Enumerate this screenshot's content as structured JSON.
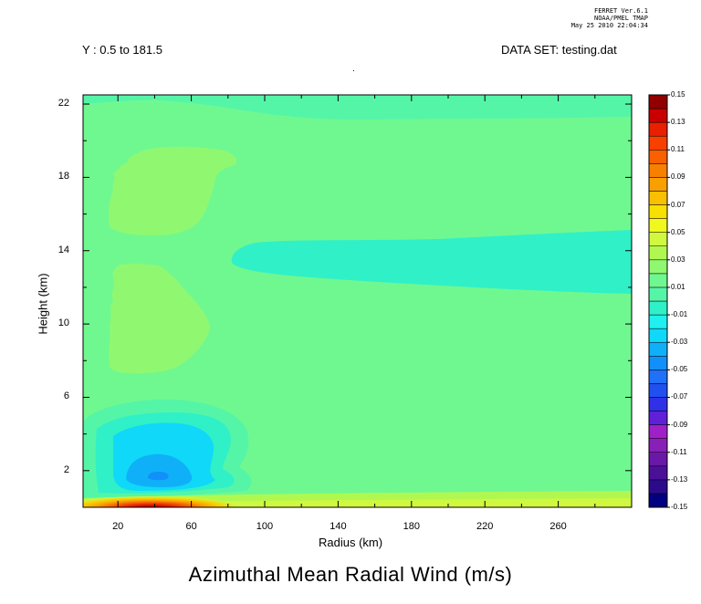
{
  "stamp": {
    "line1": "FERRET  Ver.6.1",
    "line2": "NOAA/PMEL TMAP",
    "line3": "May 25 2010 22:04:34"
  },
  "header": {
    "left": "Y : 0.5 to 181.5",
    "right": "DATA SET: testing.dat",
    "dot": "."
  },
  "chart_data": {
    "type": "heatmap",
    "title": "Azimuthal Mean Radial Wind (m/s)",
    "xlabel": "Radius (km)",
    "ylabel": "Height (km)",
    "xlim": [
      1,
      300
    ],
    "ylim": [
      0,
      22.5
    ],
    "x_ticks": [
      20,
      60,
      100,
      140,
      180,
      220,
      260
    ],
    "y_ticks": [
      2,
      6,
      10,
      14,
      18,
      22
    ],
    "colorbar": {
      "levels": [
        -0.15,
        -0.14,
        -0.13,
        -0.12,
        -0.11,
        -0.1,
        -0.09,
        -0.08,
        -0.07,
        -0.06,
        -0.05,
        -0.04,
        -0.03,
        -0.02,
        -0.01,
        0.0,
        0.01,
        0.02,
        0.03,
        0.04,
        0.05,
        0.06,
        0.07,
        0.08,
        0.09,
        0.1,
        0.11,
        0.12,
        0.13,
        0.14,
        0.15
      ],
      "tick_labels": [
        "0.15",
        "0.13",
        "0.11",
        "0.09",
        "0.07",
        "0.05",
        "0.03",
        "0.01",
        "-0.01",
        "-0.03",
        "-0.05",
        "-0.07",
        "-0.09",
        "-0.11",
        "-0.13",
        "-0.15"
      ],
      "colors": [
        "#000080",
        "#2c0a8c",
        "#4a1098",
        "#6a18a8",
        "#8820b8",
        "#a020c8",
        "#6020d8",
        "#3030e8",
        "#2050f0",
        "#2070f8",
        "#1090f8",
        "#10b0f8",
        "#10d8f8",
        "#20f0f0",
        "#30f0c8",
        "#55f5a8",
        "#70f890",
        "#90f870",
        "#b0f850",
        "#d0f840",
        "#f0f820",
        "#f8e000",
        "#f8c000",
        "#f8a000",
        "#f88000",
        "#f86000",
        "#f84000",
        "#e82000",
        "#c80000",
        "#900000"
      ]
    },
    "regions": [
      {
        "desc": "background",
        "value": 0.005
      },
      {
        "desc": "upper-left positive lobe",
        "x_range": [
          16,
          85
        ],
        "y_range": [
          16.2,
          19.2
        ],
        "value": 0.015
      },
      {
        "desc": "mid-left positive lobe",
        "x_range": [
          16,
          72
        ],
        "y_range": [
          7.6,
          13.0
        ],
        "value": 0.015
      },
      {
        "desc": "negative tongue near 13 km",
        "x_range": [
          80,
          300
        ],
        "y_range": [
          11.3,
          14.8
        ],
        "value": -0.005
      },
      {
        "desc": "top negative band",
        "x_range": [
          1,
          300
        ],
        "y_range": [
          20.4,
          22.5
        ],
        "value": -0.005
      },
      {
        "desc": "low-level inflow layers",
        "x_range": [
          8,
          90
        ],
        "y_range": [
          0.8,
          5.0
        ],
        "values": [
          -0.005,
          -0.015,
          -0.025,
          -0.035
        ]
      },
      {
        "desc": "inflow core minimum",
        "x": 42,
        "y": 1.7,
        "value": -0.045
      },
      {
        "desc": "surface outflow maximum",
        "x": 45,
        "y": 0.1,
        "value": 0.14
      }
    ]
  }
}
